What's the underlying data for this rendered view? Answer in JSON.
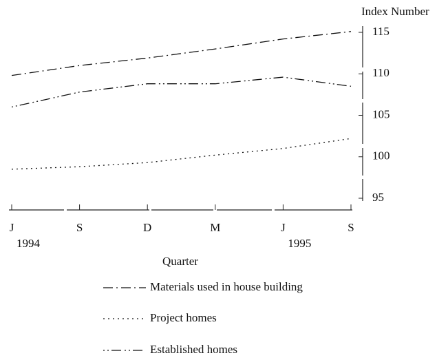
{
  "chart_data": {
    "type": "line",
    "y_axis_label": "Index Number",
    "x_axis_label": "Quarter",
    "categories": [
      "J",
      "S",
      "D",
      "M",
      "J",
      "S"
    ],
    "year_labels": [
      "1994",
      null,
      null,
      null,
      "1995",
      null
    ],
    "series": [
      {
        "name": "Materials used in house building",
        "color": "#111111",
        "dash": "14 5 2 5",
        "values": [
          109.8,
          111.0,
          111.9,
          113.0,
          114.2,
          115.1
        ]
      },
      {
        "name": "Project homes",
        "color": "#111111",
        "dash": "2 5",
        "values": [
          98.5,
          98.8,
          99.3,
          100.2,
          101.0,
          102.2
        ]
      },
      {
        "name": "Established homes",
        "color": "#111111",
        "dash": "2 4 2 4 14 5",
        "values": [
          106.0,
          107.8,
          108.8,
          108.8,
          109.6,
          108.5
        ]
      }
    ],
    "ylim": [
      95,
      115
    ],
    "yticks": [
      95,
      100,
      105,
      110,
      115
    ],
    "grid": false
  }
}
